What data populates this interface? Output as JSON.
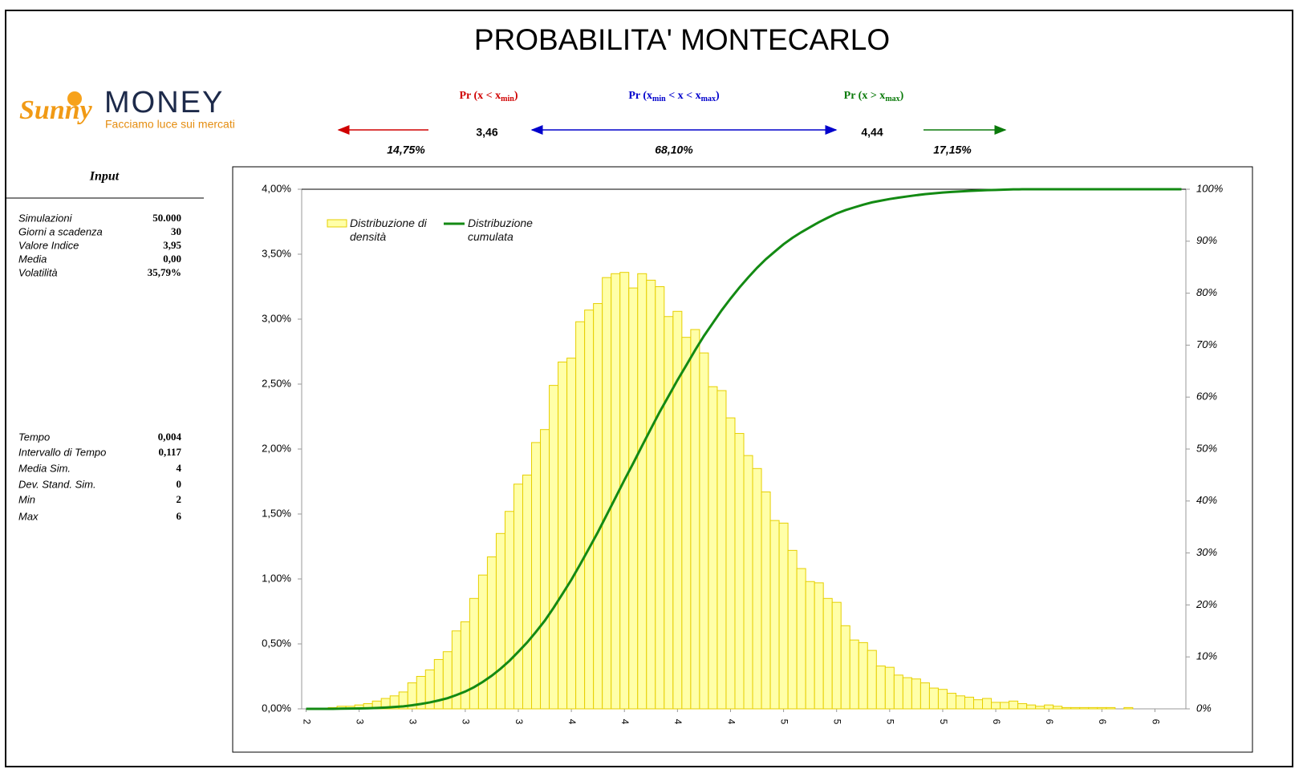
{
  "title": "PROBABILITA' MONTECARLO",
  "logo": {
    "brand_a": "Sunny",
    "brand_b": "MONEY",
    "tagline": "Facciamo luce sui mercati"
  },
  "probabilities": {
    "labels": [
      [
        "Pr (x < x",
        "min",
        ")"
      ],
      [
        "Pr (x",
        "min",
        " < x < x",
        "max",
        ")"
      ],
      [
        "Pr (x > x",
        "max",
        ")"
      ]
    ],
    "xmin": "3,46",
    "xmax": "4,44",
    "shares": [
      "14,75%",
      "68,10%",
      "17,15%"
    ]
  },
  "input": {
    "header": "Input",
    "rows": [
      [
        "Simulazioni",
        "50.000"
      ],
      [
        "Giorni a scadenza",
        "30"
      ],
      [
        "Valore Indice",
        "3,95"
      ],
      [
        "Media",
        "0,00"
      ],
      [
        "Volatilità",
        "35,79%"
      ]
    ],
    "rows2": [
      [
        "Tempo",
        "0,004"
      ],
      [
        "Intervallo di Tempo",
        "0,117"
      ],
      [
        "Media Sim.",
        "4"
      ],
      [
        "Dev. Stand. Sim.",
        "0"
      ],
      [
        "Min",
        "2"
      ],
      [
        "Max",
        "6"
      ]
    ]
  },
  "chart_data": {
    "type": "bar",
    "categories": [
      "2",
      null,
      null,
      null,
      null,
      null,
      "3",
      null,
      null,
      null,
      null,
      null,
      "3",
      null,
      null,
      null,
      null,
      null,
      "3",
      null,
      null,
      null,
      null,
      null,
      "3",
      null,
      null,
      null,
      null,
      null,
      "4",
      null,
      null,
      null,
      null,
      null,
      "4",
      null,
      null,
      null,
      null,
      null,
      "4",
      null,
      null,
      null,
      null,
      null,
      "4",
      null,
      null,
      null,
      null,
      null,
      "5",
      null,
      null,
      null,
      null,
      null,
      "5",
      null,
      null,
      null,
      null,
      null,
      "5",
      null,
      null,
      null,
      null,
      null,
      "5",
      null,
      null,
      null,
      null,
      null,
      "6",
      null,
      null,
      null,
      null,
      null,
      "6",
      null,
      null,
      null,
      null,
      null,
      "6",
      null,
      null,
      null,
      null,
      null,
      "6",
      null,
      null,
      null
    ],
    "series": [
      {
        "name": "Distribuzione di densità",
        "type": "bar",
        "color": "#ffffa8",
        "edge": "#e6cf00",
        "values": [
          0,
          0,
          0,
          0.01,
          0.02,
          0.02,
          0.03,
          0.04,
          0.06,
          0.08,
          0.1,
          0.13,
          0.2,
          0.25,
          0.3,
          0.38,
          0.44,
          0.6,
          0.67,
          0.85,
          1.03,
          1.17,
          1.35,
          1.52,
          1.73,
          1.8,
          2.05,
          2.15,
          2.49,
          2.67,
          2.7,
          2.98,
          3.07,
          3.12,
          3.32,
          3.35,
          3.36,
          3.24,
          3.35,
          3.3,
          3.25,
          3.02,
          3.06,
          2.86,
          2.92,
          2.74,
          2.48,
          2.45,
          2.24,
          2.12,
          1.95,
          1.85,
          1.67,
          1.45,
          1.43,
          1.22,
          1.08,
          0.98,
          0.97,
          0.85,
          0.82,
          0.64,
          0.53,
          0.51,
          0.45,
          0.33,
          0.32,
          0.26,
          0.24,
          0.23,
          0.2,
          0.16,
          0.15,
          0.12,
          0.1,
          0.09,
          0.07,
          0.08,
          0.05,
          0.05,
          0.06,
          0.04,
          0.03,
          0.02,
          0.03,
          0.02,
          0.01,
          0.01,
          0.01,
          0.01,
          0.01,
          0.01,
          0,
          0.01,
          0,
          0,
          0,
          0,
          0,
          0
        ]
      },
      {
        "name": "Distribuzione cumulata",
        "type": "line",
        "axis": "y2",
        "color": "#138a13",
        "values": [
          0,
          0,
          0,
          0.01,
          0.03,
          0.05,
          0.08,
          0.12,
          0.18,
          0.26,
          0.36,
          0.49,
          0.69,
          0.94,
          1.24,
          1.62,
          2.06,
          2.66,
          3.33,
          4.18,
          5.21,
          6.38,
          7.73,
          9.25,
          10.98,
          12.78,
          14.83,
          16.98,
          19.47,
          22.14,
          24.84,
          27.82,
          30.89,
          34.01,
          37.33,
          40.68,
          44.04,
          47.28,
          50.63,
          53.93,
          57.18,
          60.2,
          63.26,
          66.12,
          69.04,
          71.78,
          74.26,
          76.71,
          78.95,
          81.07,
          83.02,
          84.87,
          86.54,
          87.99,
          89.42,
          90.64,
          91.72,
          92.7,
          93.67,
          94.52,
          95.34,
          95.98,
          96.51,
          97.02,
          97.47,
          97.8,
          98.12,
          98.38,
          98.62,
          98.85,
          99.05,
          99.21,
          99.36,
          99.48,
          99.58,
          99.67,
          99.74,
          99.82,
          99.87,
          99.92,
          99.98,
          99.99,
          100,
          100,
          100,
          100,
          100,
          100,
          100,
          100,
          100,
          100,
          100,
          100,
          100,
          100,
          100,
          100,
          100,
          100
        ]
      }
    ],
    "ylim": [
      0,
      4
    ],
    "yticks": [
      {
        "value": 0,
        "label": "0,00%"
      },
      {
        "value": 0.5,
        "label": "0,50%"
      },
      {
        "value": 1,
        "label": "1,00%"
      },
      {
        "value": 1.5,
        "label": "1,50%"
      },
      {
        "value": 2,
        "label": "2,00%"
      },
      {
        "value": 2.5,
        "label": "2,50%"
      },
      {
        "value": 3,
        "label": "3,00%"
      },
      {
        "value": 3.5,
        "label": "3,50%"
      },
      {
        "value": 4,
        "label": "4,00%"
      }
    ],
    "y2lim": [
      0,
      100
    ],
    "y2ticks": [
      {
        "value": 0,
        "label": "0%"
      },
      {
        "value": 10,
        "label": "10%"
      },
      {
        "value": 20,
        "label": "20%"
      },
      {
        "value": 30,
        "label": "30%"
      },
      {
        "value": 40,
        "label": "40%"
      },
      {
        "value": 50,
        "label": "50%"
      },
      {
        "value": 60,
        "label": "60%"
      },
      {
        "value": 70,
        "label": "70%"
      },
      {
        "value": 80,
        "label": "80%"
      },
      {
        "value": 90,
        "label": "90%"
      },
      {
        "value": 100,
        "label": "100%"
      }
    ]
  }
}
